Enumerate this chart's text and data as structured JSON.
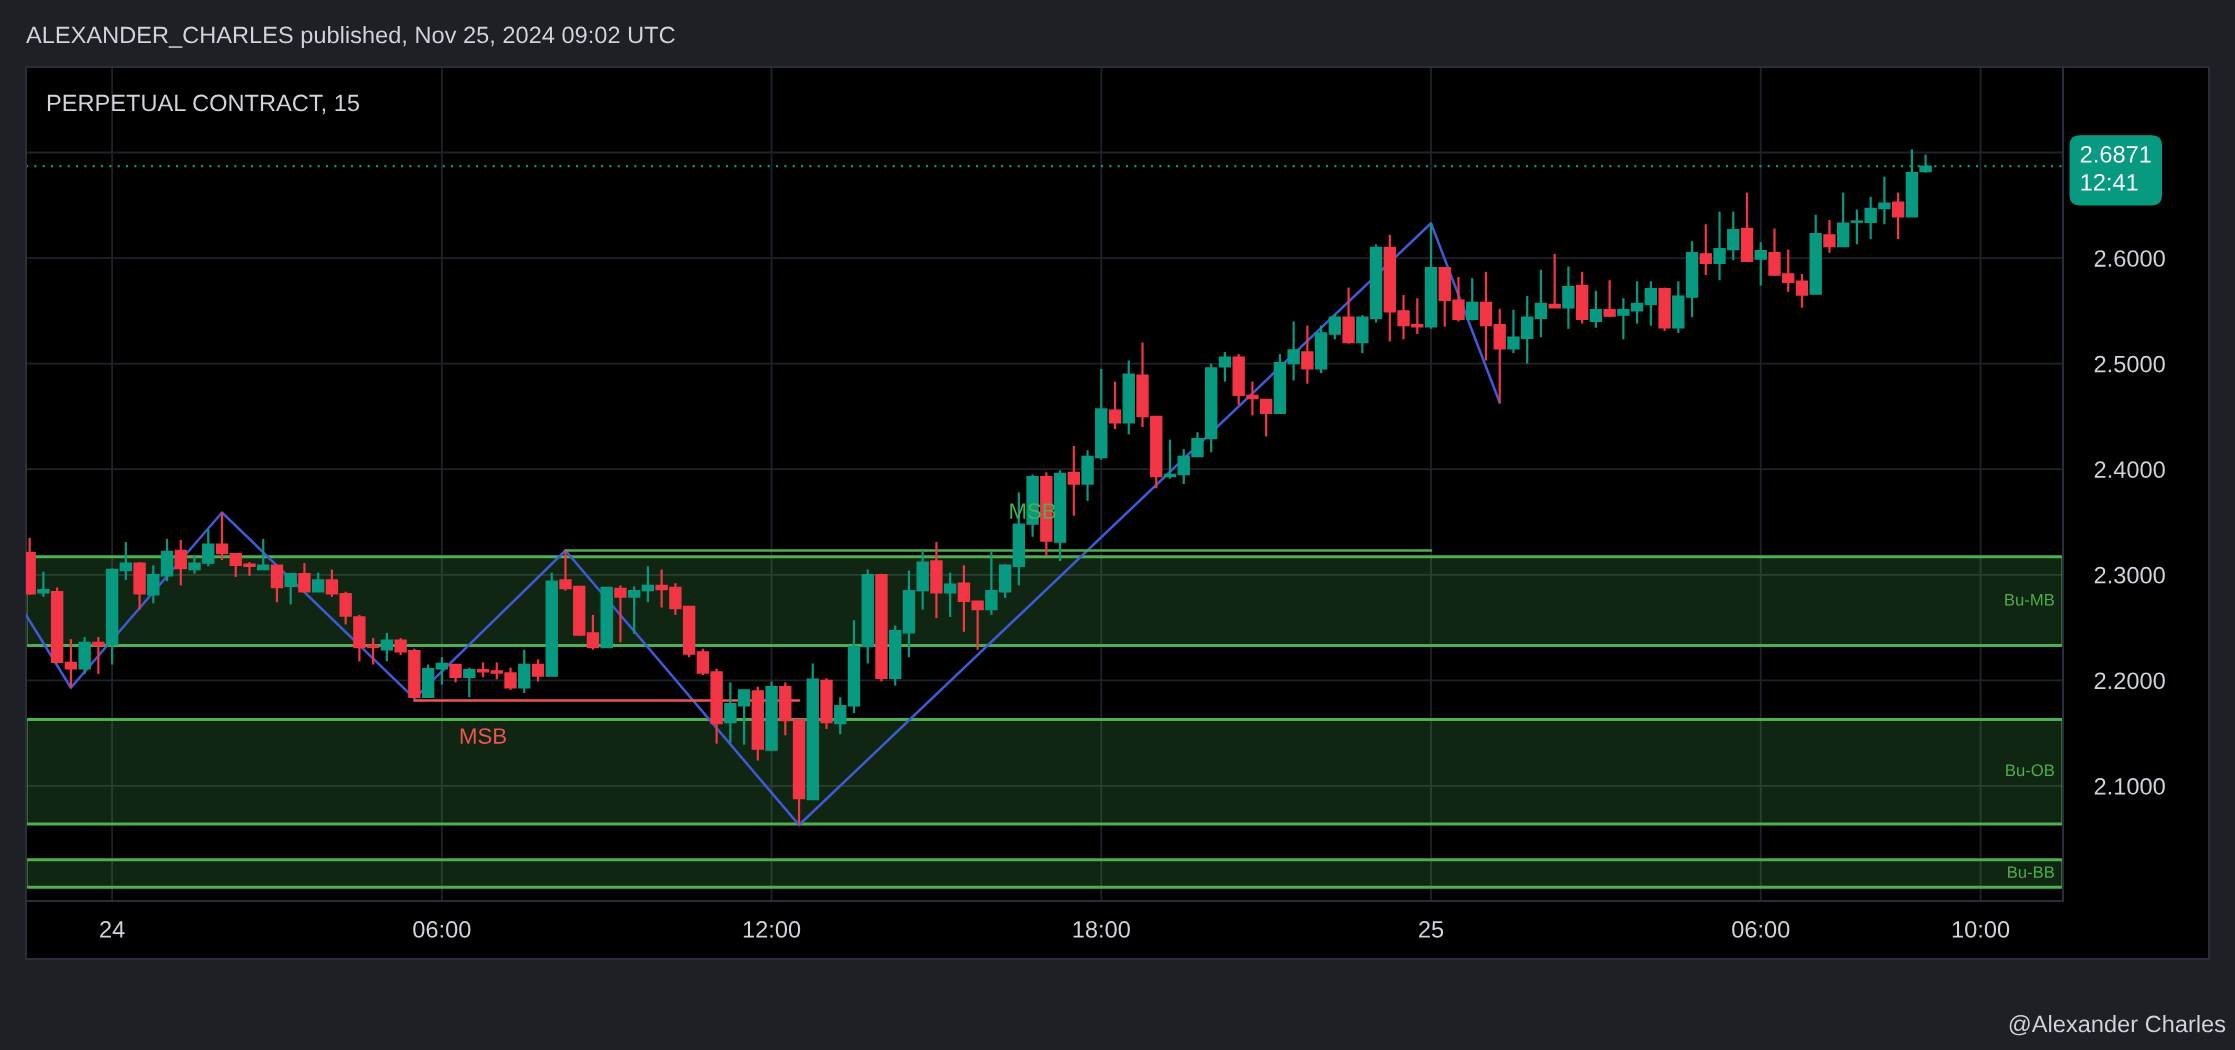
{
  "chart_data": {
    "type": "candlestick",
    "title": "PERPETUAL CONTRACT, 15",
    "x": [
      "2024-11-23T22:30",
      "2024-11-23T22:45",
      "2024-11-23T23:00",
      "2024-11-23T23:15",
      "2024-11-23T23:30",
      "2024-11-23T23:45",
      "2024-11-24T00:00",
      "2024-11-24T00:15",
      "2024-11-24T00:30",
      "2024-11-24T00:45",
      "2024-11-24T01:00",
      "2024-11-24T01:15",
      "2024-11-24T01:30",
      "2024-11-24T01:45",
      "2024-11-24T02:00",
      "2024-11-24T02:15",
      "2024-11-24T02:30",
      "2024-11-24T02:45",
      "2024-11-24T03:00",
      "2024-11-24T03:15",
      "2024-11-24T03:30",
      "2024-11-24T03:45",
      "2024-11-24T04:00",
      "2024-11-24T04:15",
      "2024-11-24T04:30",
      "2024-11-24T04:45",
      "2024-11-24T05:00",
      "2024-11-24T05:15",
      "2024-11-24T05:30",
      "2024-11-24T05:45",
      "2024-11-24T06:00",
      "2024-11-24T06:15",
      "2024-11-24T06:30",
      "2024-11-24T06:45",
      "2024-11-24T07:00",
      "2024-11-24T07:15",
      "2024-11-24T07:30",
      "2024-11-24T07:45",
      "2024-11-24T08:00",
      "2024-11-24T08:15",
      "2024-11-24T08:30",
      "2024-11-24T08:45",
      "2024-11-24T09:00",
      "2024-11-24T09:15",
      "2024-11-24T09:30",
      "2024-11-24T09:45",
      "2024-11-24T10:00",
      "2024-11-24T10:15",
      "2024-11-24T10:30",
      "2024-11-24T10:45",
      "2024-11-24T11:00",
      "2024-11-24T11:15",
      "2024-11-24T11:30",
      "2024-11-24T11:45",
      "2024-11-24T12:00",
      "2024-11-24T12:15",
      "2024-11-24T12:30",
      "2024-11-24T12:45",
      "2024-11-24T13:00",
      "2024-11-24T13:15",
      "2024-11-24T13:30",
      "2024-11-24T13:45",
      "2024-11-24T14:00",
      "2024-11-24T14:15",
      "2024-11-24T14:30",
      "2024-11-24T14:45",
      "2024-11-24T15:00",
      "2024-11-24T15:15",
      "2024-11-24T15:30",
      "2024-11-24T15:45",
      "2024-11-24T16:00",
      "2024-11-24T16:15",
      "2024-11-24T16:30",
      "2024-11-24T16:45",
      "2024-11-24T17:00",
      "2024-11-24T17:15",
      "2024-11-24T17:30",
      "2024-11-24T17:45",
      "2024-11-24T18:00",
      "2024-11-24T18:15",
      "2024-11-24T18:30",
      "2024-11-24T18:45",
      "2024-11-24T19:00",
      "2024-11-24T19:15",
      "2024-11-24T19:30",
      "2024-11-24T19:45",
      "2024-11-24T20:00",
      "2024-11-24T20:15",
      "2024-11-24T20:30",
      "2024-11-24T20:45",
      "2024-11-24T21:00",
      "2024-11-24T21:15",
      "2024-11-24T21:30",
      "2024-11-24T21:45",
      "2024-11-24T22:00",
      "2024-11-24T22:15",
      "2024-11-24T22:30",
      "2024-11-24T22:45",
      "2024-11-24T23:00",
      "2024-11-24T23:15",
      "2024-11-24T23:30",
      "2024-11-24T23:45",
      "2024-11-25T00:00",
      "2024-11-25T00:15",
      "2024-11-25T00:30",
      "2024-11-25T00:45",
      "2024-11-25T01:00",
      "2024-11-25T01:15",
      "2024-11-25T01:30",
      "2024-11-25T01:45",
      "2024-11-25T02:00",
      "2024-11-25T02:15",
      "2024-11-25T02:30",
      "2024-11-25T02:45",
      "2024-11-25T03:00",
      "2024-11-25T03:15",
      "2024-11-25T03:30",
      "2024-11-25T03:45",
      "2024-11-25T04:00",
      "2024-11-25T04:15",
      "2024-11-25T04:30",
      "2024-11-25T04:45",
      "2024-11-25T05:00",
      "2024-11-25T05:15",
      "2024-11-25T05:30",
      "2024-11-25T05:45",
      "2024-11-25T06:00",
      "2024-11-25T06:15",
      "2024-11-25T06:30",
      "2024-11-25T06:45",
      "2024-11-25T07:00",
      "2024-11-25T07:15",
      "2024-11-25T07:30",
      "2024-11-25T07:45",
      "2024-11-25T08:00",
      "2024-11-25T08:15",
      "2024-11-25T08:30",
      "2024-11-25T08:45",
      "2024-11-25T09:00"
    ],
    "ohlc": [
      [
        2.321,
        2.335,
        2.281,
        2.282
      ],
      [
        2.283,
        2.303,
        2.279,
        2.286
      ],
      [
        2.284,
        2.288,
        2.216,
        2.217
      ],
      [
        2.217,
        2.239,
        2.193,
        2.211
      ],
      [
        2.211,
        2.241,
        2.206,
        2.236
      ],
      [
        2.236,
        2.241,
        2.206,
        2.233
      ],
      [
        2.234,
        2.306,
        2.215,
        2.305
      ],
      [
        2.304,
        2.331,
        2.295,
        2.311
      ],
      [
        2.311,
        2.312,
        2.267,
        2.282
      ],
      [
        2.281,
        2.309,
        2.273,
        2.3
      ],
      [
        2.299,
        2.334,
        2.294,
        2.322
      ],
      [
        2.323,
        2.333,
        2.29,
        2.306
      ],
      [
        2.305,
        2.318,
        2.301,
        2.311
      ],
      [
        2.311,
        2.343,
        2.308,
        2.329
      ],
      [
        2.329,
        2.359,
        2.314,
        2.32
      ],
      [
        2.32,
        2.32,
        2.298,
        2.309
      ],
      [
        2.31,
        2.312,
        2.299,
        2.308
      ],
      [
        2.305,
        2.334,
        2.305,
        2.309
      ],
      [
        2.309,
        2.309,
        2.274,
        2.288
      ],
      [
        2.289,
        2.301,
        2.272,
        2.301
      ],
      [
        2.301,
        2.311,
        2.284,
        2.284
      ],
      [
        2.284,
        2.302,
        2.284,
        2.295
      ],
      [
        2.295,
        2.305,
        2.279,
        2.282
      ],
      [
        2.282,
        2.284,
        2.253,
        2.261
      ],
      [
        2.26,
        2.262,
        2.218,
        2.231
      ],
      [
        2.233,
        2.24,
        2.215,
        2.231
      ],
      [
        2.229,
        2.245,
        2.218,
        2.238
      ],
      [
        2.238,
        2.24,
        2.224,
        2.227
      ],
      [
        2.228,
        2.23,
        2.183,
        2.184
      ],
      [
        2.184,
        2.215,
        2.184,
        2.211
      ],
      [
        2.211,
        2.222,
        2.196,
        2.216
      ],
      [
        2.215,
        2.215,
        2.198,
        2.203
      ],
      [
        2.203,
        2.212,
        2.184,
        2.21
      ],
      [
        2.21,
        2.217,
        2.203,
        2.208
      ],
      [
        2.209,
        2.217,
        2.201,
        2.207
      ],
      [
        2.207,
        2.212,
        2.191,
        2.193
      ],
      [
        2.193,
        2.229,
        2.188,
        2.215
      ],
      [
        2.215,
        2.22,
        2.199,
        2.204
      ],
      [
        2.204,
        2.302,
        2.204,
        2.294
      ],
      [
        2.295,
        2.323,
        2.285,
        2.287
      ],
      [
        2.289,
        2.289,
        2.242,
        2.243
      ],
      [
        2.245,
        2.262,
        2.229,
        2.231
      ],
      [
        2.231,
        2.288,
        2.231,
        2.288
      ],
      [
        2.287,
        2.29,
        2.236,
        2.279
      ],
      [
        2.279,
        2.289,
        2.244,
        2.285
      ],
      [
        2.285,
        2.308,
        2.274,
        2.29
      ],
      [
        2.29,
        2.305,
        2.269,
        2.286
      ],
      [
        2.288,
        2.292,
        2.262,
        2.268
      ],
      [
        2.27,
        2.27,
        2.222,
        2.225
      ],
      [
        2.227,
        2.23,
        2.205,
        2.207
      ],
      [
        2.208,
        2.211,
        2.14,
        2.159
      ],
      [
        2.16,
        2.198,
        2.141,
        2.178
      ],
      [
        2.176,
        2.191,
        2.139,
        2.191
      ],
      [
        2.19,
        2.194,
        2.124,
        2.135
      ],
      [
        2.134,
        2.199,
        2.133,
        2.194
      ],
      [
        2.194,
        2.198,
        2.148,
        2.162
      ],
      [
        2.163,
        2.163,
        2.063,
        2.088
      ],
      [
        2.087,
        2.216,
        2.087,
        2.201
      ],
      [
        2.2,
        2.202,
        2.154,
        2.16
      ],
      [
        2.159,
        2.184,
        2.149,
        2.176
      ],
      [
        2.176,
        2.257,
        2.169,
        2.232
      ],
      [
        2.232,
        2.305,
        2.216,
        2.3
      ],
      [
        2.3,
        2.301,
        2.199,
        2.202
      ],
      [
        2.202,
        2.252,
        2.195,
        2.247
      ],
      [
        2.245,
        2.304,
        2.222,
        2.285
      ],
      [
        2.285,
        2.324,
        2.267,
        2.312
      ],
      [
        2.313,
        2.331,
        2.259,
        2.283
      ],
      [
        2.283,
        2.302,
        2.26,
        2.291
      ],
      [
        2.292,
        2.309,
        2.246,
        2.275
      ],
      [
        2.275,
        2.275,
        2.229,
        2.267
      ],
      [
        2.267,
        2.323,
        2.262,
        2.285
      ],
      [
        2.284,
        2.31,
        2.278,
        2.309
      ],
      [
        2.308,
        2.378,
        2.29,
        2.348
      ],
      [
        2.348,
        2.395,
        2.336,
        2.393
      ],
      [
        2.393,
        2.397,
        2.318,
        2.332
      ],
      [
        2.331,
        2.399,
        2.313,
        2.396
      ],
      [
        2.397,
        2.422,
        2.356,
        2.386
      ],
      [
        2.386,
        2.418,
        2.37,
        2.412
      ],
      [
        2.411,
        2.495,
        2.409,
        2.457
      ],
      [
        2.456,
        2.483,
        2.438,
        2.444
      ],
      [
        2.444,
        2.503,
        2.433,
        2.49
      ],
      [
        2.489,
        2.52,
        2.44,
        2.45
      ],
      [
        2.45,
        2.45,
        2.382,
        2.393
      ],
      [
        2.393,
        2.428,
        2.391,
        2.395
      ],
      [
        2.395,
        2.419,
        2.386,
        2.412
      ],
      [
        2.412,
        2.435,
        2.412,
        2.429
      ],
      [
        2.429,
        2.5,
        2.416,
        2.496
      ],
      [
        2.497,
        2.511,
        2.483,
        2.506
      ],
      [
        2.506,
        2.509,
        2.461,
        2.47
      ],
      [
        2.47,
        2.483,
        2.451,
        2.467
      ],
      [
        2.466,
        2.466,
        2.431,
        2.453
      ],
      [
        2.453,
        2.509,
        2.453,
        2.501
      ],
      [
        2.5,
        2.54,
        2.484,
        2.513
      ],
      [
        2.511,
        2.536,
        2.481,
        2.495
      ],
      [
        2.495,
        2.536,
        2.491,
        2.529
      ],
      [
        2.528,
        2.547,
        2.523,
        2.544
      ],
      [
        2.544,
        2.572,
        2.519,
        2.52
      ],
      [
        2.52,
        2.546,
        2.51,
        2.544
      ],
      [
        2.543,
        2.613,
        2.539,
        2.61
      ],
      [
        2.61,
        2.622,
        2.521,
        2.549
      ],
      [
        2.55,
        2.565,
        2.523,
        2.536
      ],
      [
        2.537,
        2.562,
        2.528,
        2.535
      ],
      [
        2.535,
        2.633,
        2.533,
        2.591
      ],
      [
        2.591,
        2.591,
        2.535,
        2.56
      ],
      [
        2.56,
        2.582,
        2.54,
        2.542
      ],
      [
        2.542,
        2.581,
        2.541,
        2.558
      ],
      [
        2.558,
        2.587,
        2.503,
        2.536
      ],
      [
        2.537,
        2.552,
        2.463,
        2.514
      ],
      [
        2.514,
        2.551,
        2.51,
        2.525
      ],
      [
        2.524,
        2.564,
        2.5,
        2.544
      ],
      [
        2.543,
        2.589,
        2.525,
        2.557
      ],
      [
        2.556,
        2.604,
        2.553,
        2.553
      ],
      [
        2.553,
        2.592,
        2.533,
        2.573
      ],
      [
        2.574,
        2.587,
        2.538,
        2.542
      ],
      [
        2.54,
        2.569,
        2.534,
        2.551
      ],
      [
        2.551,
        2.579,
        2.544,
        2.545
      ],
      [
        2.546,
        2.562,
        2.523,
        2.551
      ],
      [
        2.55,
        2.578,
        2.538,
        2.557
      ],
      [
        2.556,
        2.578,
        2.536,
        2.571
      ],
      [
        2.571,
        2.572,
        2.531,
        2.534
      ],
      [
        2.534,
        2.578,
        2.529,
        2.564
      ],
      [
        2.563,
        2.616,
        2.544,
        2.605
      ],
      [
        2.604,
        2.632,
        2.584,
        2.595
      ],
      [
        2.595,
        2.644,
        2.579,
        2.609
      ],
      [
        2.608,
        2.644,
        2.598,
        2.627
      ],
      [
        2.628,
        2.662,
        2.596,
        2.597
      ],
      [
        2.599,
        2.615,
        2.574,
        2.607
      ],
      [
        2.605,
        2.628,
        2.583,
        2.584
      ],
      [
        2.585,
        2.608,
        2.568,
        2.577
      ],
      [
        2.578,
        2.585,
        2.553,
        2.565
      ],
      [
        2.566,
        2.641,
        2.566,
        2.623
      ],
      [
        2.622,
        2.636,
        2.605,
        2.611
      ],
      [
        2.611,
        2.662,
        2.611,
        2.633
      ],
      [
        2.634,
        2.646,
        2.613,
        2.635
      ],
      [
        2.634,
        2.658,
        2.618,
        2.647
      ],
      [
        2.647,
        2.677,
        2.632,
        2.652
      ],
      [
        2.653,
        2.662,
        2.618,
        2.639
      ],
      [
        2.639,
        2.703,
        2.639,
        2.681
      ],
      [
        2.682,
        2.698,
        2.681,
        2.6871
      ]
    ],
    "colors": [
      "#f23645",
      "#089981",
      "#f23645",
      "#f23645",
      "#089981",
      "#f23645",
      "#089981",
      "#089981",
      "#f23645",
      "#089981",
      "#089981",
      "#f23645",
      "#089981",
      "#089981",
      "#f23645",
      "#f23645",
      "#f23645",
      "#089981",
      "#f23645",
      "#089981",
      "#f23645",
      "#089981",
      "#f23645",
      "#f23645",
      "#f23645",
      "#f23645",
      "#089981",
      "#f23645",
      "#f23645",
      "#089981",
      "#089981",
      "#f23645",
      "#089981",
      "#f23645",
      "#f23645",
      "#f23645",
      "#089981",
      "#f23645",
      "#089981",
      "#f23645",
      "#f23645",
      "#f23645",
      "#089981",
      "#f23645",
      "#089981",
      "#089981",
      "#f23645",
      "#f23645",
      "#f23645",
      "#f23645",
      "#f23645",
      "#089981",
      "#089981",
      "#f23645",
      "#089981",
      "#f23645",
      "#f23645",
      "#089981",
      "#f23645",
      "#089981",
      "#089981",
      "#089981",
      "#f23645",
      "#089981",
      "#089981",
      "#089981",
      "#f23645",
      "#089981",
      "#f23645",
      "#f23645",
      "#089981",
      "#089981",
      "#089981",
      "#089981",
      "#f23645",
      "#089981",
      "#f23645",
      "#089981",
      "#089981",
      "#f23645",
      "#089981",
      "#f23645",
      "#f23645",
      "#089981",
      "#089981",
      "#089981",
      "#089981",
      "#089981",
      "#f23645",
      "#f23645",
      "#f23645",
      "#089981",
      "#089981",
      "#f23645",
      "#089981",
      "#089981",
      "#f23645",
      "#089981",
      "#089981",
      "#f23645",
      "#f23645",
      "#f23645",
      "#089981",
      "#f23645",
      "#f23645",
      "#089981",
      "#f23645",
      "#f23645",
      "#089981",
      "#089981",
      "#089981",
      "#f23645",
      "#089981",
      "#f23645",
      "#089981",
      "#f23645",
      "#089981",
      "#089981",
      "#089981",
      "#f23645",
      "#089981",
      "#089981",
      "#f23645",
      "#089981",
      "#089981",
      "#f23645",
      "#089981",
      "#f23645",
      "#f23645",
      "#f23645",
      "#089981",
      "#f23645",
      "#089981",
      "#089981",
      "#089981",
      "#089981",
      "#f23645",
      "#089981",
      "#089981"
    ],
    "series": [
      {
        "type": "line",
        "color": "#3f5bd5",
        "x": [
          "2024-11-23T22:26",
          "2024-11-23T23:15",
          "2024-11-24T02:00",
          "2024-11-24T05:30",
          "2024-11-24T08:15",
          "2024-11-24T12:30",
          "2024-11-25T00:00",
          "2024-11-25T01:15"
        ],
        "values": [
          2.262,
          2.193,
          2.359,
          2.183,
          2.323,
          2.063,
          2.633,
          2.463
        ]
      },
      {
        "type": "line",
        "color": "#f05555",
        "x": [
          "2024-11-24T05:30",
          "2024-11-24T12:30"
        ],
        "values": [
          2.181,
          2.181
        ]
      },
      {
        "type": "line",
        "color": "#4caf50",
        "x": [
          "2024-11-24T08:15",
          "2024-11-25T00:00"
        ],
        "values": [
          2.323,
          2.323
        ]
      }
    ],
    "bands": [
      {
        "axis": "y",
        "from": 2.233,
        "to": 2.317,
        "label": "Bu-MB",
        "color": "#4caf50"
      },
      {
        "axis": "y",
        "from": 2.064,
        "to": 2.163,
        "label": "Bu-OB",
        "color": "#4caf50"
      },
      {
        "axis": "y",
        "from": 2.004,
        "to": 2.03,
        "label": "Bu-BB",
        "color": "#4caf50"
      }
    ],
    "ref_lines": [
      {
        "axis": "y",
        "value": 2.6871,
        "label": "2.6871\n12:41",
        "color": "#089981",
        "line_style": "dotted"
      }
    ],
    "annotations": [
      "ALEXANDER_CHARLES published, Nov 25, 2024 09:02 UTC",
      {
        "text": "MSB",
        "x": "2024-11-24T06:45",
        "y": 2.181
      },
      {
        "text": "MSB",
        "x": "2024-11-24T16:45",
        "y": 2.323
      },
      "@Alexander Charles"
    ],
    "xlim": [
      "2024-11-23T22:26",
      "2024-11-25T11:30"
    ],
    "xticks": [
      {
        "value": "2024-11-24T00:00",
        "label": "24"
      },
      {
        "value": "2024-11-24T06:00",
        "label": "06:00"
      },
      {
        "value": "2024-11-24T12:00",
        "label": "12:00"
      },
      {
        "value": "2024-11-24T18:00",
        "label": "18:00"
      },
      {
        "value": "2024-11-25T00:00",
        "label": "25"
      },
      {
        "value": "2024-11-25T06:00",
        "label": "06:00"
      },
      {
        "value": "2024-11-25T10:00",
        "label": "10:00"
      }
    ],
    "ylim": [
      1.991,
      2.781
    ],
    "yticks": [
      {
        "value": 2.1,
        "label": "2.1000"
      },
      {
        "value": 2.2,
        "label": "2.2000"
      },
      {
        "value": 2.3,
        "label": "2.3000"
      },
      {
        "value": 2.4,
        "label": "2.4000"
      },
      {
        "value": 2.5,
        "label": "2.5000"
      },
      {
        "value": 2.6,
        "label": "2.6000"
      },
      {
        "value": 2.7,
        "label": null
      }
    ],
    "grid": true
  }
}
